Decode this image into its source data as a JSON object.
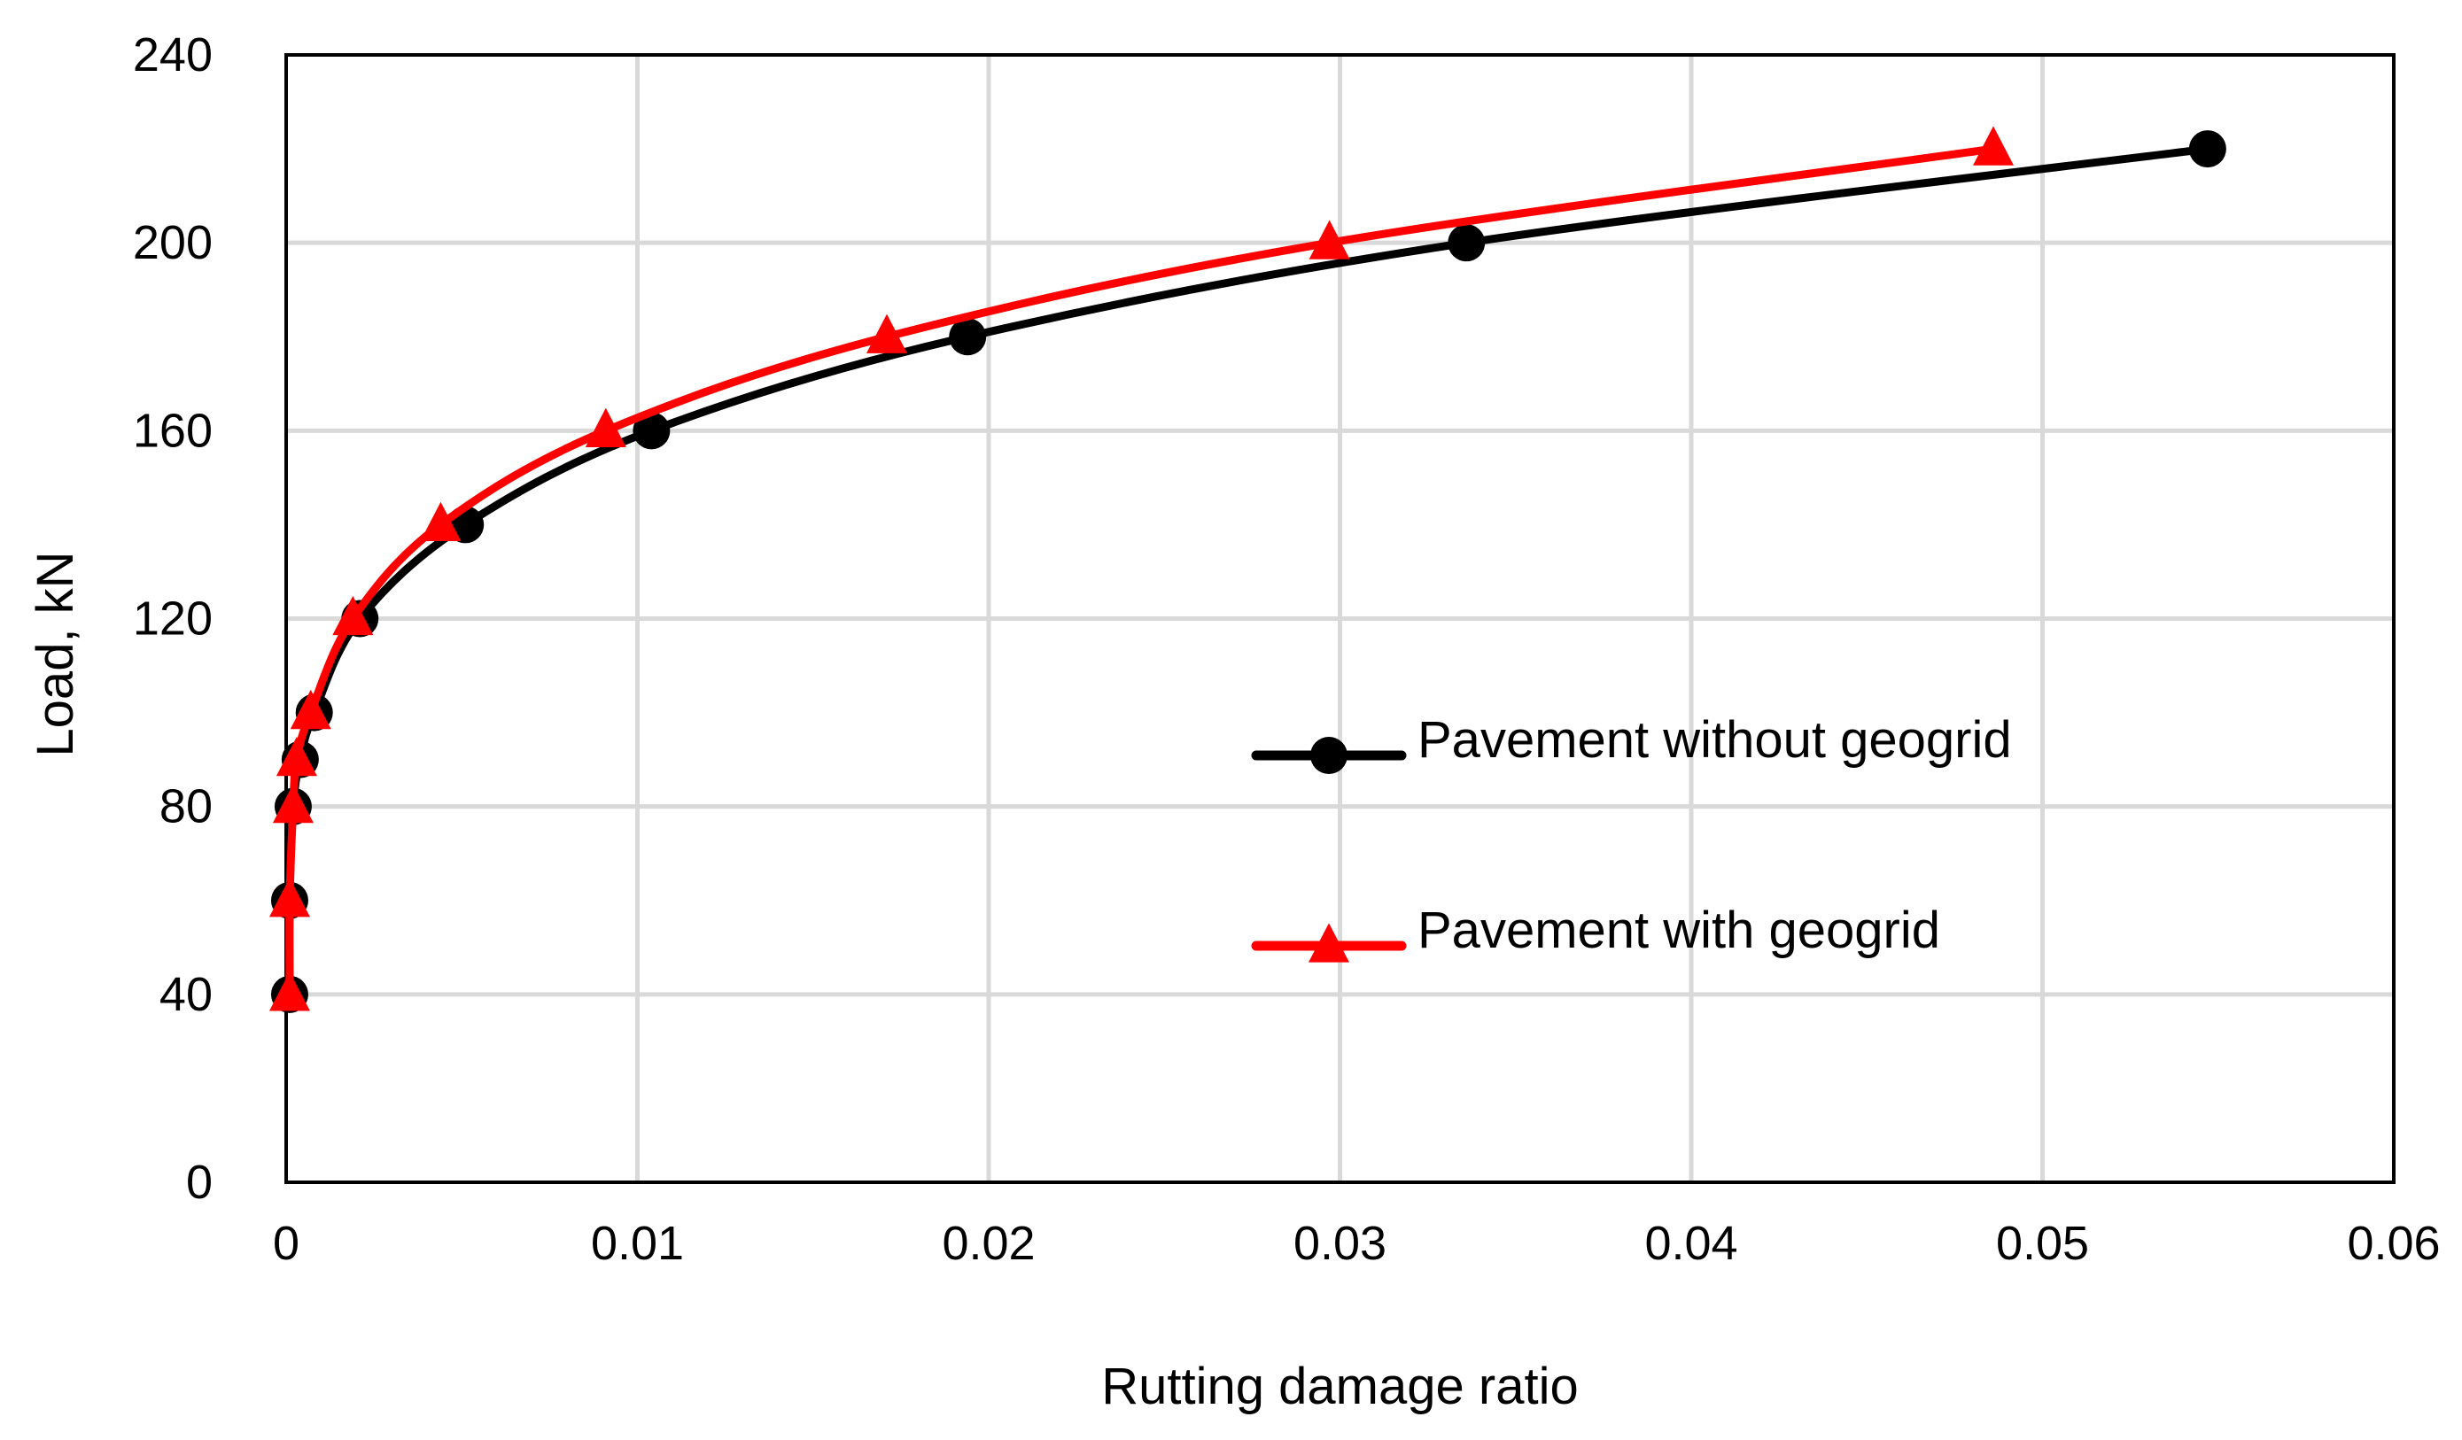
{
  "chart_data": {
    "type": "line",
    "title": "",
    "xlabel": "Rutting damage ratio",
    "ylabel": "Load, kN",
    "xlim": [
      0,
      0.06
    ],
    "ylim": [
      0,
      240
    ],
    "x_ticks": [
      0,
      0.01,
      0.02,
      0.03,
      0.04,
      0.05,
      0.06
    ],
    "x_tick_labels": [
      "0",
      "0.01",
      "0.02",
      "0.03",
      "0.04",
      "0.05",
      "0.06"
    ],
    "y_ticks": [
      0,
      40,
      80,
      120,
      160,
      200,
      240
    ],
    "y_tick_labels": [
      "0",
      "40",
      "80",
      "120",
      "160",
      "200",
      "240"
    ],
    "grid": true,
    "legend_position": "right-center",
    "series": [
      {
        "name": "Pavement without geogrid",
        "color": "#000000",
        "marker": "circle",
        "smooth": true,
        "x": [
          0.0001,
          0.0001,
          0.0002,
          0.0004,
          0.0008,
          0.0021,
          0.0051,
          0.0104,
          0.0194,
          0.0336,
          0.0547
        ],
        "y": [
          40,
          60,
          80,
          90,
          100,
          120,
          140,
          160,
          180,
          200,
          220
        ]
      },
      {
        "name": "Pavement with geogrid",
        "color": "#ff0000",
        "marker": "triangle",
        "smooth": true,
        "x": [
          0.0001,
          0.0001,
          0.0002,
          0.0003,
          0.0007,
          0.0019,
          0.0044,
          0.0091,
          0.0171,
          0.0297,
          0.0486
        ],
        "y": [
          40,
          60,
          80,
          90,
          100,
          120,
          140,
          160,
          180,
          200,
          220
        ]
      }
    ]
  }
}
